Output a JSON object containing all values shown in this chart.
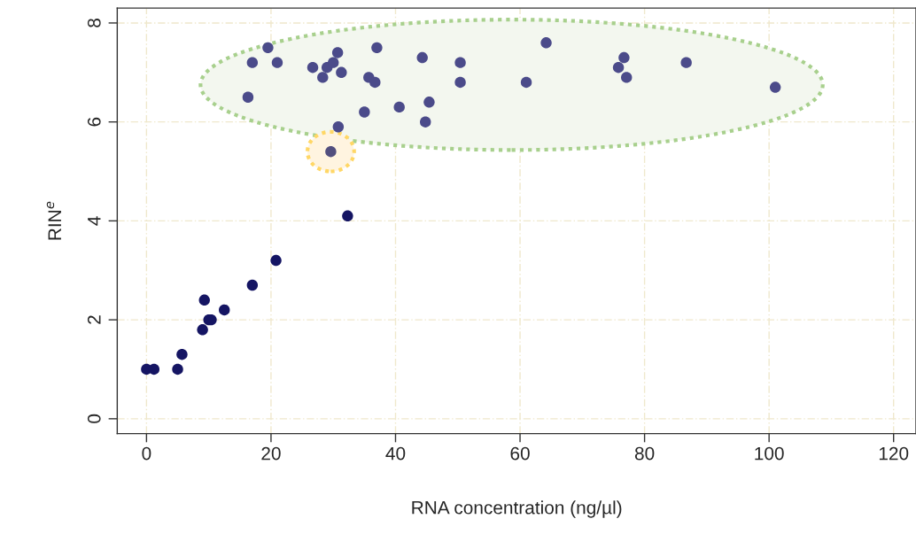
{
  "chart_data": {
    "type": "scatter",
    "xlabel": "RNA concentration (ng/µl)",
    "ylabel": "RIN$^{e}$",
    "xlim": [
      -4.7,
      123.6
    ],
    "ylim": [
      -0.3,
      8.3
    ],
    "xticks": [
      0,
      20,
      40,
      60,
      80,
      100,
      120
    ],
    "yticks": [
      0,
      2,
      4,
      6,
      8
    ],
    "grid": true,
    "marker": "circle",
    "series": [
      {
        "color": "#151563",
        "x": [
          0,
          1.2,
          5,
          5.7,
          9,
          9.3,
          10,
          10.4,
          12.5,
          17,
          20.8,
          32.3
        ],
        "values": [
          1,
          1,
          1,
          1.3,
          1.8,
          2.4,
          2,
          2,
          2.2,
          2.7,
          3.2,
          4.1
        ]
      },
      {
        "color": "#4b4b8a",
        "x": [
          16.3,
          17,
          19.5,
          21,
          26.7,
          28.3,
          29,
          30,
          30.7,
          31.3,
          30.8,
          35,
          35.7,
          36.7,
          37,
          40.6,
          44.3,
          44.8,
          45.4,
          50.4,
          50.4,
          61,
          64.2,
          75.8,
          76.7,
          77.1,
          86.7,
          101
        ],
        "values": [
          6.5,
          7.2,
          7.5,
          7.2,
          7.1,
          6.9,
          7.1,
          7.2,
          7.4,
          7.0,
          5.9,
          6.2,
          6.9,
          6.8,
          7.5,
          6.3,
          7.3,
          6.0,
          6.4,
          7.2,
          6.8,
          6.8,
          7.6,
          7.1,
          7.3,
          6.9,
          7.2,
          6.7
        ]
      },
      {
        "color": "#524f7e",
        "x": [
          29.6
        ],
        "values": [
          5.4
        ]
      }
    ]
  }
}
